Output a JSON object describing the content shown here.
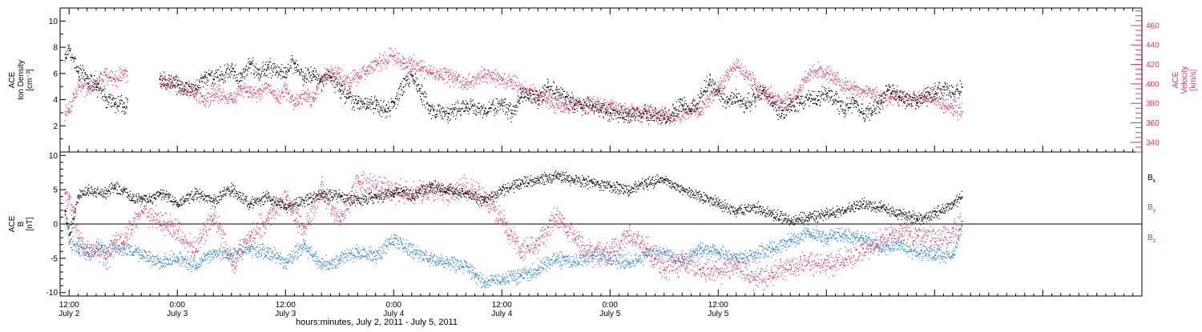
{
  "figure": {
    "xaxis_title": "hours:minutes, July  2, 2011 - July  5, 2011"
  },
  "colors": {
    "black": "#000000",
    "red": "#e8305c",
    "blue": "#1f7fe0"
  },
  "chart_data": [
    {
      "type": "scatter",
      "panel": "top",
      "left_axis_label": [
        "ACE",
        "Ion Density",
        "[cm⁻³]"
      ],
      "right_axis_label": [
        "ACE",
        "Velocity",
        "[km/s]"
      ],
      "left_ylim": [
        0,
        11
      ],
      "left_ticks": [
        "2",
        "4",
        "6",
        "8",
        "10"
      ],
      "right_ylim": [
        330,
        478
      ],
      "right_ticks": [
        "340",
        "360",
        "380",
        "400",
        "420",
        "440",
        "460"
      ],
      "series": [
        {
          "axis": "left",
          "color": "black",
          "data_gaps_hours": [
            [
              18.5,
              22.0
            ]
          ],
          "x_hours": [
            11.5,
            12,
            13,
            14,
            15,
            16,
            17,
            18,
            22,
            24,
            26,
            27,
            28,
            30,
            31,
            32,
            33,
            34,
            36,
            37,
            38,
            39,
            40,
            41,
            42,
            43,
            44,
            45,
            46,
            47,
            48,
            49,
            50,
            51,
            52,
            54,
            56,
            58,
            60,
            61,
            62,
            63,
            64,
            65,
            66,
            67,
            68,
            70,
            72,
            74,
            76,
            78,
            79,
            80,
            81,
            82,
            83,
            84,
            85,
            86,
            87,
            88,
            89,
            90,
            91,
            92,
            93,
            94,
            95,
            96,
            97,
            98,
            99,
            100,
            101,
            102,
            103,
            104,
            106,
            107,
            108,
            109,
            110,
            111
          ],
          "values": [
            7.5,
            7.8,
            6.2,
            5.8,
            5.0,
            4.2,
            3.8,
            3.5,
            5.6,
            5.2,
            4.8,
            5.8,
            5.6,
            6.2,
            5.5,
            6.8,
            6.0,
            6.5,
            6.2,
            6.8,
            5.8,
            6.0,
            5.4,
            5.8,
            4.8,
            4.2,
            3.8,
            3.5,
            3.6,
            3.2,
            3.8,
            5.0,
            5.8,
            4.5,
            3.2,
            3.0,
            3.5,
            3.2,
            3.6,
            3.0,
            4.2,
            4.5,
            4.0,
            5.0,
            4.8,
            4.2,
            3.6,
            3.5,
            3.0,
            2.8,
            3.0,
            2.6,
            3.0,
            3.6,
            3.2,
            4.2,
            5.6,
            4.6,
            3.8,
            4.2,
            3.6,
            4.2,
            4.8,
            3.8,
            3.0,
            3.5,
            3.8,
            4.2,
            4.0,
            4.5,
            4.0,
            3.2,
            4.0,
            3.0,
            3.2,
            3.8,
            5.0,
            4.2,
            3.8,
            4.2,
            4.5,
            4.8,
            4.5,
            5.0
          ]
        },
        {
          "axis": "right",
          "color": "red",
          "data_gaps_hours": [
            [
              18.5,
              22.0
            ]
          ],
          "x_hours": [
            11.5,
            12,
            13,
            14,
            15,
            16,
            17,
            18,
            22,
            24,
            26,
            27,
            28,
            30,
            31,
            32,
            33,
            34,
            35,
            36,
            37,
            38,
            39,
            40,
            41,
            42,
            43,
            44,
            45,
            46,
            47,
            48,
            49,
            50,
            51,
            52,
            53,
            54,
            55,
            56,
            58,
            60,
            61,
            62,
            63,
            64,
            65,
            66,
            67,
            68,
            70,
            72,
            74,
            76,
            78,
            79,
            80,
            81,
            82,
            83,
            84,
            85,
            86,
            87,
            88,
            89,
            90,
            91,
            92,
            93,
            94,
            95,
            96,
            97,
            98,
            99,
            100,
            101,
            102,
            103,
            104,
            106,
            107,
            108,
            109,
            110,
            111
          ],
          "values": [
            372,
            375,
            400,
            395,
            404,
            410,
            405,
            410,
            405,
            400,
            392,
            385,
            390,
            385,
            395,
            392,
            390,
            400,
            385,
            395,
            380,
            390,
            385,
            405,
            412,
            408,
            402,
            410,
            415,
            420,
            425,
            430,
            422,
            420,
            418,
            412,
            410,
            408,
            405,
            400,
            410,
            405,
            402,
            395,
            392,
            388,
            385,
            380,
            375,
            380,
            378,
            378,
            372,
            370,
            368,
            365,
            368,
            375,
            372,
            385,
            395,
            410,
            418,
            412,
            400,
            392,
            388,
            382,
            385,
            395,
            410,
            415,
            412,
            405,
            400,
            395,
            392,
            390,
            388,
            385,
            388,
            382,
            392,
            385,
            378,
            375,
            372
          ]
        }
      ]
    },
    {
      "type": "scatter",
      "panel": "bottom",
      "left_axis_label": [
        "ACE",
        "B",
        "[nT]"
      ],
      "ylim": [
        -10.5,
        10.5
      ],
      "ticks": [
        "-10",
        "-5",
        "0",
        "5",
        "10"
      ],
      "zero_line": true,
      "legend": [
        {
          "label": "B",
          "sub": "x",
          "color": "black"
        },
        {
          "label": "B",
          "sub": "y",
          "color": "blue"
        },
        {
          "label": "B",
          "sub": "z",
          "color": "red"
        }
      ],
      "legend_position": "right",
      "series": [
        {
          "name": "Bx",
          "color": "black",
          "x_hours": [
            11.5,
            12,
            13,
            14,
            16,
            17,
            18,
            19,
            20,
            21,
            22,
            23,
            24,
            26,
            28,
            30,
            32,
            34,
            36,
            38,
            40,
            42,
            44,
            46,
            48,
            49,
            50,
            52,
            54,
            56,
            58,
            60,
            62,
            64,
            66,
            68,
            70,
            72,
            74,
            76,
            78,
            80,
            82,
            84,
            86,
            88,
            90,
            92,
            94,
            96,
            98,
            100,
            102,
            104,
            106,
            108,
            110,
            111
          ],
          "values": [
            2.0,
            -1.5,
            4.0,
            5.0,
            4.5,
            5.5,
            5.0,
            3.5,
            4.0,
            3.5,
            4.5,
            4.0,
            3.0,
            4.5,
            3.5,
            5.0,
            3.0,
            4.0,
            2.5,
            3.5,
            4.5,
            4.0,
            3.5,
            4.0,
            4.5,
            5.0,
            4.0,
            5.5,
            5.0,
            4.5,
            3.5,
            5.0,
            6.0,
            6.5,
            7.0,
            6.5,
            6.0,
            5.5,
            5.0,
            6.0,
            6.5,
            5.0,
            4.0,
            3.0,
            2.0,
            2.5,
            1.5,
            0.5,
            1.0,
            1.5,
            2.0,
            3.0,
            2.5,
            1.5,
            0.8,
            1.5,
            3.0,
            4.0
          ]
        },
        {
          "name": "By",
          "color": "blue",
          "x_hours": [
            11.5,
            12,
            13,
            14,
            15,
            16,
            17,
            18,
            20,
            22,
            24,
            26,
            28,
            30,
            32,
            34,
            36,
            38,
            40,
            42,
            44,
            46,
            48,
            50,
            52,
            54,
            56,
            57,
            58,
            60,
            62,
            64,
            66,
            68,
            70,
            72,
            74,
            76,
            78,
            80,
            82,
            84,
            86,
            88,
            90,
            92,
            94,
            96,
            98,
            100,
            102,
            104,
            106,
            108,
            110,
            111
          ],
          "values": [
            1.5,
            -2.5,
            -3.5,
            -4.0,
            -3.5,
            -4.0,
            -3.0,
            -3.5,
            -4.5,
            -5.5,
            -5.0,
            -6.0,
            -4.0,
            -4.5,
            -3.5,
            -4.0,
            -5.5,
            -3.0,
            -6.0,
            -5.0,
            -4.0,
            -4.5,
            -2.0,
            -4.0,
            -5.0,
            -5.5,
            -6.0,
            -7.5,
            -8.5,
            -8.0,
            -7.5,
            -6.5,
            -5.0,
            -5.5,
            -4.5,
            -5.0,
            -5.5,
            -4.5,
            -4.0,
            -5.5,
            -3.5,
            -4.0,
            -5.0,
            -4.5,
            -3.5,
            -2.5,
            -1.0,
            -2.0,
            -1.5,
            -2.0,
            -3.5,
            -3.0,
            -4.0,
            -4.5,
            -4.5,
            0.0
          ]
        },
        {
          "name": "Bz",
          "color": "red",
          "x_hours": [
            11.5,
            12,
            13,
            14,
            15,
            16,
            17,
            18,
            20,
            22,
            24,
            26,
            28,
            30,
            32,
            34,
            36,
            38,
            40,
            42,
            44,
            46,
            48,
            50,
            52,
            54,
            56,
            58,
            60,
            62,
            64,
            66,
            68,
            70,
            72,
            74,
            76,
            78,
            80,
            82,
            84,
            86,
            88,
            90,
            92,
            94,
            96,
            98,
            100,
            102,
            104,
            106,
            108,
            110,
            111
          ],
          "values": [
            4.5,
            4.0,
            -2.0,
            -4.0,
            -3.5,
            -5.0,
            -3.0,
            -2.5,
            2.0,
            0.5,
            -1.0,
            -3.5,
            1.5,
            -6.0,
            -2.0,
            1.0,
            4.0,
            -1.0,
            5.0,
            0.5,
            6.0,
            5.5,
            5.0,
            4.5,
            5.0,
            4.5,
            5.5,
            4.0,
            0.5,
            -4.0,
            -3.0,
            1.5,
            -2.0,
            -4.5,
            -4.0,
            -1.5,
            -3.5,
            -6.5,
            -5.5,
            -6.5,
            -7.0,
            -6.0,
            -8.0,
            -7.0,
            -6.5,
            -5.5,
            -6.0,
            -5.0,
            -3.5,
            -2.5,
            -1.0,
            -1.5,
            -2.5,
            -1.0,
            0.5
          ]
        }
      ]
    }
  ],
  "x_axis": {
    "range_hours": [
      11,
      131
    ],
    "ticks": [
      {
        "hour": 12,
        "time": "12:00",
        "date": "July 2"
      },
      {
        "hour": 24,
        "time": "0:00",
        "date": "July 3"
      },
      {
        "hour": 36,
        "time": "12:00",
        "date": "July 3"
      },
      {
        "hour": 48,
        "time": "0:00",
        "date": "July 4"
      },
      {
        "hour": 60,
        "time": "12:00",
        "date": "July 4"
      },
      {
        "hour": 72,
        "time": "0:00",
        "date": "July 5"
      },
      {
        "hour": 84,
        "time": "12:00",
        "date": "July 5"
      }
    ]
  }
}
